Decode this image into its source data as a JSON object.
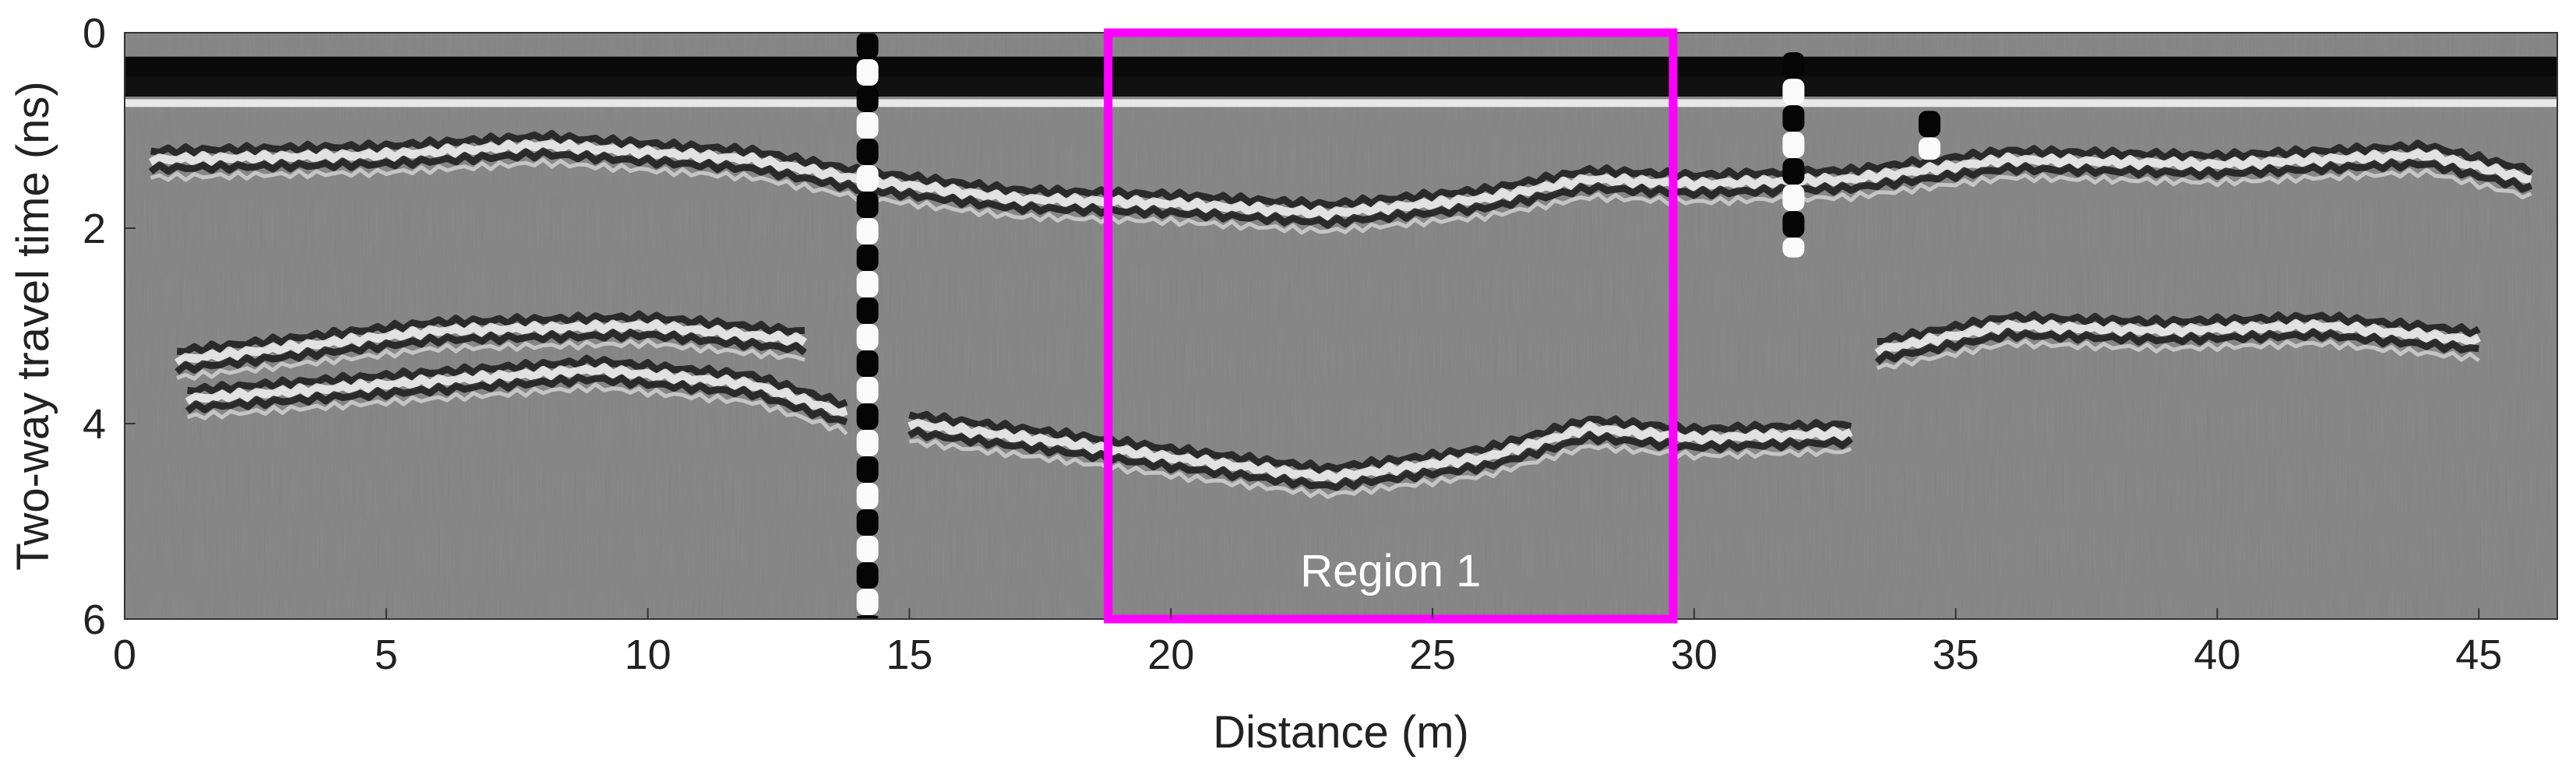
{
  "chart_data": {
    "type": "heatmap",
    "title": "",
    "xlabel": "Distance (m)",
    "ylabel": "Two-way travel time (ns)",
    "xlim": [
      0,
      46.5
    ],
    "ylim": [
      0,
      6
    ],
    "y_axis_inverted": true,
    "x_ticks": [
      0,
      5,
      10,
      15,
      20,
      25,
      30,
      35,
      40,
      45
    ],
    "x_tick_labels": [
      "0",
      "5",
      "10",
      "15",
      "20",
      "25",
      "30",
      "35",
      "40",
      "45"
    ],
    "y_ticks": [
      0,
      2,
      4,
      6
    ],
    "y_tick_labels": [
      "0",
      "2",
      "4",
      "6"
    ],
    "colormap": "grayscale",
    "grid": false,
    "layers": [
      {
        "points": [
          [
            0,
            0.5
          ],
          [
            46.5,
            0.5
          ]
        ]
      },
      {
        "points": [
          [
            0.5,
            1.3
          ],
          [
            5,
            1.25
          ],
          [
            8,
            1.15
          ],
          [
            12,
            1.3
          ],
          [
            14,
            1.5
          ],
          [
            17,
            1.7
          ],
          [
            20,
            1.75
          ],
          [
            23,
            1.85
          ],
          [
            26,
            1.7
          ],
          [
            28,
            1.5
          ],
          [
            30,
            1.55
          ],
          [
            33,
            1.5
          ],
          [
            36,
            1.3
          ],
          [
            40,
            1.35
          ],
          [
            44,
            1.25
          ],
          [
            46,
            1.5
          ]
        ]
      },
      {
        "points": [
          [
            1,
            3.35
          ],
          [
            6,
            3.05
          ],
          [
            10,
            3.0
          ],
          [
            13,
            3.15
          ]
        ]
      },
      {
        "points": [
          [
            1.2,
            3.75
          ],
          [
            5,
            3.6
          ],
          [
            9,
            3.45
          ],
          [
            12,
            3.6
          ],
          [
            13.8,
            3.9
          ]
        ]
      },
      {
        "points": [
          [
            15,
            4.0
          ],
          [
            18,
            4.2
          ],
          [
            20,
            4.35
          ],
          [
            23,
            4.55
          ],
          [
            26,
            4.35
          ],
          [
            28,
            4.05
          ],
          [
            30,
            4.15
          ],
          [
            33,
            4.1
          ]
        ]
      },
      {
        "points": [
          [
            33.5,
            3.25
          ],
          [
            36,
            3.0
          ],
          [
            39,
            3.05
          ],
          [
            42,
            3.0
          ],
          [
            45,
            3.15
          ]
        ]
      }
    ],
    "vertical_anomalies": [
      {
        "x": 14.2,
        "ymin": 0,
        "ymax": 6
      },
      {
        "x": 31.9,
        "ymin": 0.2,
        "ymax": 2.3
      },
      {
        "x": 34.5,
        "ymin": 0.8,
        "ymax": 1.3
      }
    ],
    "annotations": [
      {
        "type": "rectangle",
        "label": "Region 1",
        "x": [
          18.8,
          29.6
        ],
        "y": [
          0,
          6
        ],
        "color": "#ff00ff"
      }
    ]
  },
  "colors": {
    "background_gray": "#8a8a8a",
    "highlight": "#ff00ff",
    "axis": "#333333",
    "text": "#222222",
    "annotation_text": "#ffffff"
  }
}
